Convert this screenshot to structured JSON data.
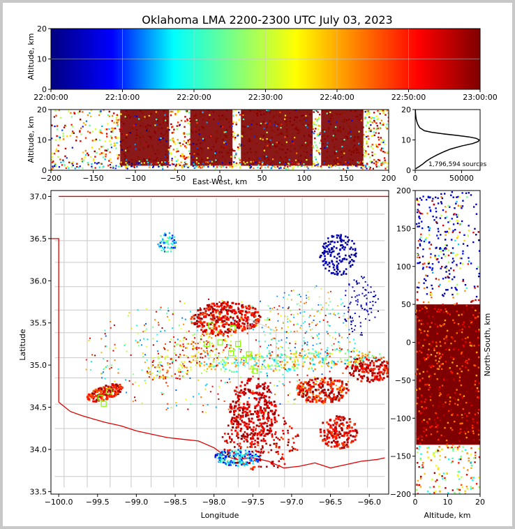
{
  "title": "Oklahoma LMA 2200-2300 UTC July 03, 2023",
  "chart_data": [
    {
      "id": "time-height",
      "type": "scatter",
      "xlabel": "",
      "ylabel": "Altitude, km",
      "x_ticks": [
        "22:00:00",
        "22:10:00",
        "22:20:00",
        "22:30:00",
        "22:40:00",
        "22:50:00",
        "23:00:00"
      ],
      "x_range": [
        "22:00:00",
        "23:00:00"
      ],
      "ylim": [
        0,
        20
      ],
      "y_ticks": [
        0,
        10,
        20
      ],
      "grid": true,
      "colormap": [
        "#00007f",
        "#0000ff",
        "#00ffff",
        "#7fff7f",
        "#ffff00",
        "#ff7f00",
        "#ff0000",
        "#7f0000"
      ]
    },
    {
      "id": "east-west-altitude",
      "type": "scatter",
      "xlabel": "East-West, km",
      "ylabel": "Altitude, km",
      "xlim": [
        -200,
        200
      ],
      "x_ticks": [
        -200,
        -150,
        -100,
        -50,
        0,
        50,
        100,
        150,
        200
      ],
      "ylim": [
        0,
        20
      ],
      "y_ticks": [
        0,
        10,
        20
      ]
    },
    {
      "id": "altitude-histogram",
      "type": "line",
      "xlim": [
        0,
        70000
      ],
      "x_ticks": [
        0,
        50000
      ],
      "ylim": [
        0,
        20
      ],
      "y_ticks": [
        0,
        10,
        20
      ],
      "annotation": "1,796,594 sources",
      "profile": {
        "altitude": [
          0.5,
          1,
          2,
          3,
          4,
          5,
          6,
          7,
          8,
          8.8,
          9.5,
          10,
          10.5,
          11,
          11.5,
          12,
          12.5,
          13,
          14,
          15,
          16,
          17,
          18,
          19,
          20
        ],
        "count": [
          500,
          3000,
          8000,
          12000,
          17000,
          23000,
          30000,
          38000,
          50000,
          62000,
          68000,
          69000,
          66000,
          58000,
          45000,
          30000,
          18000,
          10000,
          5000,
          3000,
          1800,
          1000,
          600,
          300,
          150
        ]
      }
    },
    {
      "id": "plan-view",
      "type": "scatter",
      "xlabel": "Longitude",
      "ylabel": "Latitude",
      "xlim": [
        -100.1,
        -95.75
      ],
      "x_ticks": [
        -100.0,
        -99.5,
        -99.0,
        -98.5,
        -98.0,
        -97.5,
        -97.0,
        -96.5,
        -96.0
      ],
      "x_tick_labels": [
        "−100.0",
        "−99.5",
        "−99.0",
        "−98.5",
        "−98.0",
        "−97.5",
        "−97.0",
        "−96.5",
        "−96.0"
      ],
      "ylim": [
        33.47,
        37.07
      ],
      "y_ticks": [
        33.5,
        34.0,
        34.5,
        35.0,
        35.5,
        36.0,
        36.5,
        37.0
      ],
      "y_tick_labels": [
        "33.5",
        "34.0",
        "34.5",
        "35.0",
        "35.5",
        "36.0",
        "36.5",
        "37.0"
      ],
      "stations": [
        [
          -98.04,
          35.47
        ],
        [
          -97.76,
          35.44
        ],
        [
          -98.09,
          35.25
        ],
        [
          -97.92,
          35.27
        ],
        [
          -97.78,
          35.14
        ],
        [
          -97.69,
          35.25
        ],
        [
          -97.55,
          35.13
        ],
        [
          -97.62,
          35.06
        ],
        [
          -97.47,
          34.93
        ],
        [
          -99.35,
          34.69
        ],
        [
          -99.46,
          34.61
        ],
        [
          -99.42,
          34.54
        ]
      ]
    },
    {
      "id": "altitude-north-south",
      "type": "scatter",
      "xlabel": "Altitude, km",
      "ylabel": "North-South, km",
      "xlim": [
        0,
        20
      ],
      "x_ticks": [
        0,
        10,
        20
      ],
      "ylim": [
        -200,
        200
      ],
      "y_ticks": [
        -200,
        -150,
        -100,
        -50,
        0,
        50,
        100,
        150,
        200
      ]
    }
  ]
}
